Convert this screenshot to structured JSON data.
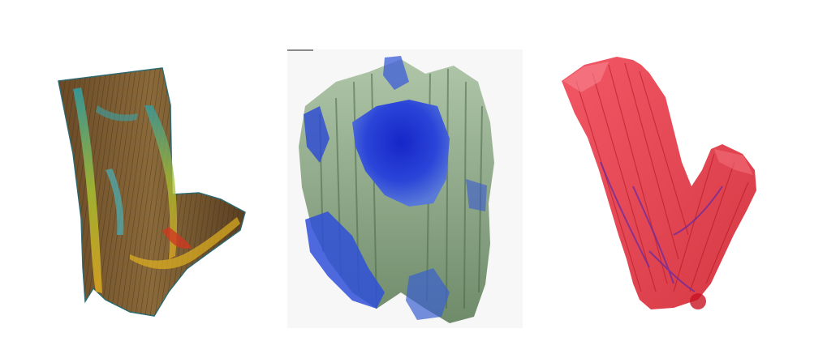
{
  "figure": {
    "panels": [
      {
        "id": "left",
        "description_icon": "tree-trunk-heatmap-render",
        "colors": {
          "base": "#7a5a2e",
          "mid": "#3f8a8a",
          "hot": "#d8b020",
          "edge": "#2f9ea0"
        }
      },
      {
        "id": "middle",
        "description_icon": "blue-green-volume-render",
        "colors": {
          "deep": "#1a2fd8",
          "mid": "#3c6ad0",
          "green": "#7f9f78",
          "bg": "#f6f7f6"
        }
      },
      {
        "id": "right",
        "description_icon": "red-fiber-volume-render",
        "colors": {
          "red": "#e02430",
          "pink": "#f25a6a",
          "purple": "#6a2aa0"
        }
      }
    ]
  }
}
